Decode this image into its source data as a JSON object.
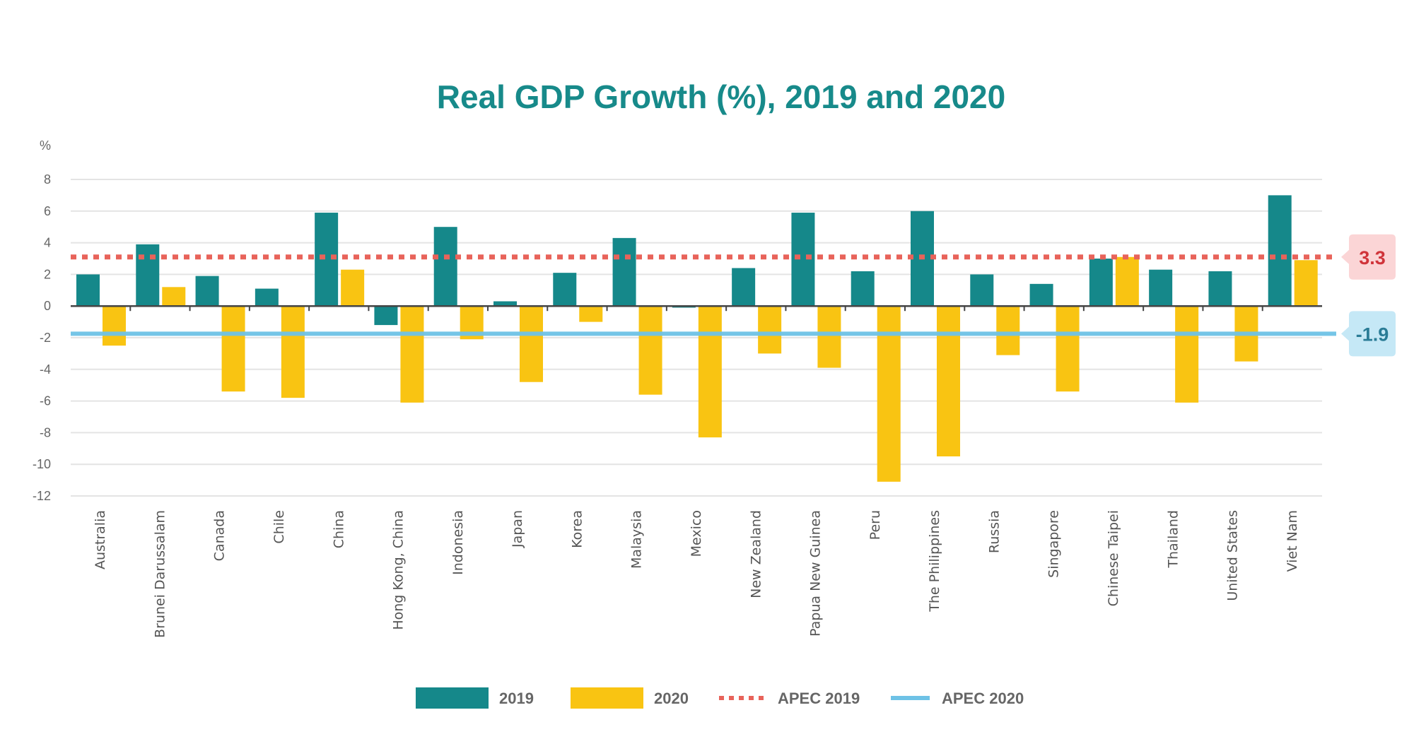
{
  "chart_data": {
    "type": "bar",
    "title": "Real GDP Growth (%), 2019 and 2020",
    "ylabel": "%",
    "xlabel": "",
    "ylim": [
      -12,
      8
    ],
    "yticks": [
      8,
      6,
      4,
      2,
      0,
      -2,
      -4,
      -6,
      -8,
      -10,
      -12
    ],
    "grid": true,
    "legend_position": "bottom",
    "categories": [
      "Australia",
      "Brunei Darussalam",
      "Canada",
      "Chile",
      "China",
      "Hong Kong, China",
      "Indonesia",
      "Japan",
      "Korea",
      "Malaysia",
      "Mexico",
      "New Zealand",
      "Papua New Guinea",
      "Peru",
      "The Philippines",
      "Russia",
      "Singapore",
      "Chinese Taipei",
      "Thailand",
      "United States",
      "Viet Nam"
    ],
    "series": [
      {
        "name": "2019",
        "color": "#15888a",
        "values": [
          2.0,
          3.9,
          1.9,
          1.1,
          5.9,
          -1.2,
          5.0,
          0.3,
          2.1,
          4.3,
          -0.1,
          2.4,
          5.9,
          2.2,
          6.0,
          2.0,
          1.4,
          3.0,
          2.3,
          2.2,
          7.0
        ]
      },
      {
        "name": "2020",
        "color": "#f9c412",
        "values": [
          -2.5,
          1.2,
          -5.4,
          -5.8,
          2.3,
          -6.1,
          -2.1,
          -4.8,
          -1.0,
          -5.6,
          -8.3,
          -3.0,
          -3.9,
          -11.1,
          -9.5,
          -3.1,
          -5.4,
          3.1,
          -6.1,
          -3.5,
          2.9
        ]
      }
    ],
    "reference_lines": [
      {
        "name": "APEC 2019",
        "value": 3.3,
        "label": "3.3",
        "style": "dotted",
        "color": "#e8635a",
        "badge_bg": "#fbd5d6",
        "badge_text": "#d0343a"
      },
      {
        "name": "APEC 2020",
        "value": -1.9,
        "label": "-1.9",
        "style": "solid",
        "color": "#6ec2e6",
        "badge_bg": "#c5e8f6",
        "badge_text": "#2a7c96"
      }
    ]
  }
}
